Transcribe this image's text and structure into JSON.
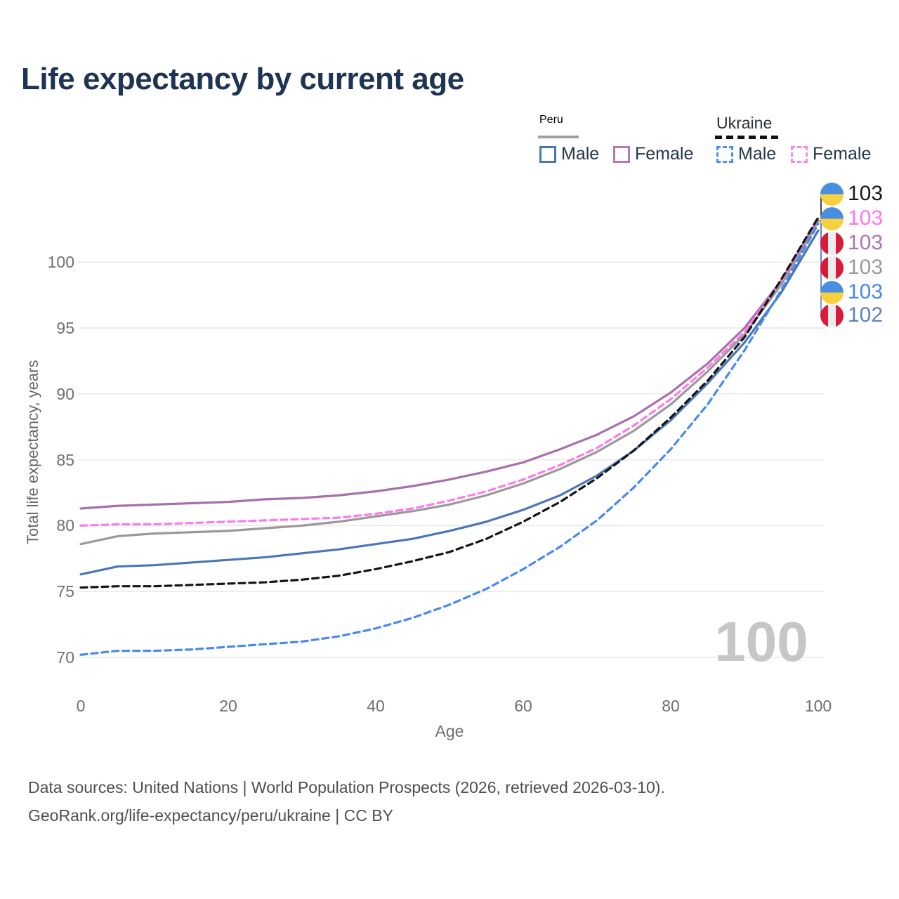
{
  "title": "Life expectancy by current age",
  "watermark_age": "100",
  "legend": {
    "peru": {
      "title": "Peru",
      "male": "Male",
      "female": "Female"
    },
    "ukraine": {
      "title": "Ukraine",
      "male": "Male",
      "female": "Female"
    }
  },
  "axes": {
    "x": {
      "label": "Age",
      "ticks": [
        0,
        20,
        40,
        60,
        80,
        100
      ],
      "range": [
        0,
        100
      ]
    },
    "y": {
      "label": "Total life expectancy, years",
      "ticks": [
        70,
        75,
        80,
        85,
        90,
        95,
        100
      ],
      "range": [
        69,
        104
      ]
    }
  },
  "end_labels": [
    {
      "value": "103",
      "flag": "ukraine",
      "series": "Ukraine total",
      "color": "#1a1a1a"
    },
    {
      "value": "103",
      "flag": "ukraine",
      "series": "Ukraine female",
      "color": "#ff77e8"
    },
    {
      "value": "103",
      "flag": "peru",
      "series": "Peru female",
      "color": "#ab74b5"
    },
    {
      "value": "103",
      "flag": "peru",
      "series": "Peru total",
      "color": "#9a9a9a"
    },
    {
      "value": "103",
      "flag": "ukraine",
      "series": "Ukraine male",
      "color": "#4689f2"
    },
    {
      "value": "102",
      "flag": "peru",
      "series": "Peru male",
      "color": "#5b82c0"
    }
  ],
  "footer": {
    "line1": "Data sources: United Nations | World Population Prospects (2026, retrieved 2026-03-10).",
    "line2": "GeoRank.org/life-expectancy/peru/ukraine | CC BY"
  },
  "chart_data": {
    "type": "line",
    "title": "Life expectancy by current age",
    "xlabel": "Age",
    "ylabel": "Total life expectancy, years",
    "xlim": [
      0,
      100
    ],
    "ylim": [
      69,
      104
    ],
    "grid": "horizontal",
    "legend_position": "top-right",
    "x": [
      0,
      5,
      10,
      15,
      20,
      25,
      30,
      35,
      40,
      45,
      50,
      55,
      60,
      65,
      70,
      75,
      80,
      85,
      90,
      95,
      100
    ],
    "series": [
      {
        "name": "Peru — Total",
        "country": "Peru",
        "sex": "Total",
        "color": "#999999",
        "dash": false,
        "values": [
          78.6,
          79.2,
          79.4,
          79.5,
          79.6,
          79.8,
          80.0,
          80.3,
          80.7,
          81.1,
          81.6,
          82.3,
          83.2,
          84.3,
          85.6,
          87.2,
          89.2,
          91.7,
          94.5,
          98.3,
          103.1
        ]
      },
      {
        "name": "Peru — Female",
        "country": "Peru",
        "sex": "Female",
        "color": "#a86fad",
        "dash": false,
        "values": [
          81.3,
          81.5,
          81.6,
          81.7,
          81.8,
          82.0,
          82.1,
          82.3,
          82.6,
          83.0,
          83.5,
          84.1,
          84.8,
          85.8,
          86.9,
          88.3,
          90.1,
          92.3,
          95.0,
          98.6,
          103.3
        ]
      },
      {
        "name": "Peru — Male",
        "country": "Peru",
        "sex": "Male",
        "color": "#4a76b8",
        "dash": false,
        "values": [
          76.3,
          76.9,
          77.0,
          77.2,
          77.4,
          77.6,
          77.9,
          78.2,
          78.6,
          79.0,
          79.6,
          80.3,
          81.2,
          82.3,
          83.8,
          85.7,
          88.0,
          90.8,
          93.9,
          97.7,
          102.4
        ]
      },
      {
        "name": "Ukraine — Female",
        "country": "Ukraine",
        "sex": "Female",
        "color": "#ff79e8",
        "dash": true,
        "values": [
          80.0,
          80.1,
          80.1,
          80.2,
          80.3,
          80.4,
          80.5,
          80.6,
          80.9,
          81.3,
          81.9,
          82.6,
          83.5,
          84.6,
          85.9,
          87.6,
          89.6,
          92.0,
          94.7,
          98.6,
          103.4
        ]
      },
      {
        "name": "Ukraine — Total",
        "country": "Ukraine",
        "sex": "Total",
        "color": "#141414",
        "dash": true,
        "values": [
          75.3,
          75.4,
          75.4,
          75.5,
          75.6,
          75.7,
          75.9,
          76.2,
          76.7,
          77.3,
          78.0,
          79.0,
          80.3,
          81.8,
          83.6,
          85.7,
          88.2,
          91.0,
          94.3,
          98.7,
          103.4
        ]
      },
      {
        "name": "Ukraine — Male",
        "country": "Ukraine",
        "sex": "Male",
        "color": "#4689f2",
        "dash": true,
        "values": [
          70.2,
          70.5,
          70.5,
          70.6,
          70.8,
          71.0,
          71.2,
          71.6,
          72.2,
          73.0,
          74.0,
          75.2,
          76.7,
          78.4,
          80.4,
          82.9,
          85.8,
          89.2,
          93.3,
          97.9,
          102.9
        ]
      }
    ]
  }
}
